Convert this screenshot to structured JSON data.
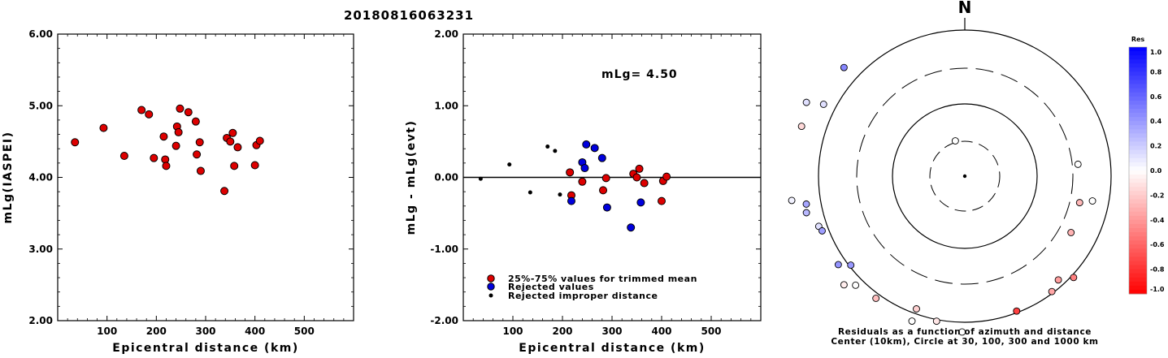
{
  "figure_title": "20180816063231",
  "chart_data": [
    {
      "type": "scatter",
      "ylabel": "mLg(IASPEI)",
      "xlabel": "Epicentral distance (km)",
      "xlim": [
        0,
        600
      ],
      "ylim": [
        2.0,
        6.0
      ],
      "xticks": [
        100,
        200,
        300,
        400,
        500
      ],
      "yticks": [
        2.0,
        3.0,
        4.0,
        5.0,
        6.0
      ],
      "ytick_labels": [
        "2.00",
        "3.00",
        "4.00",
        "5.00",
        "6.00"
      ],
      "marker_color": "#dd0000",
      "points": [
        [
          35,
          4.49
        ],
        [
          93,
          4.69
        ],
        [
          135,
          4.3
        ],
        [
          170,
          4.94
        ],
        [
          185,
          4.88
        ],
        [
          195,
          4.27
        ],
        [
          215,
          4.57
        ],
        [
          218,
          4.25
        ],
        [
          220,
          4.16
        ],
        [
          240,
          4.44
        ],
        [
          242,
          4.71
        ],
        [
          245,
          4.63
        ],
        [
          248,
          4.96
        ],
        [
          265,
          4.91
        ],
        [
          280,
          4.78
        ],
        [
          282,
          4.32
        ],
        [
          288,
          4.49
        ],
        [
          290,
          4.09
        ],
        [
          338,
          3.81
        ],
        [
          343,
          4.55
        ],
        [
          350,
          4.5
        ],
        [
          355,
          4.62
        ],
        [
          358,
          4.16
        ],
        [
          365,
          4.42
        ],
        [
          400,
          4.17
        ],
        [
          403,
          4.45
        ],
        [
          410,
          4.51
        ]
      ]
    },
    {
      "type": "scatter",
      "ylabel": "mLg - mLg(evt)",
      "xlabel": "Epicentral distance (km)",
      "xlim": [
        0,
        600
      ],
      "ylim": [
        -2.0,
        2.0
      ],
      "xticks": [
        100,
        200,
        300,
        400,
        500
      ],
      "yticks": [
        -2.0,
        -1.0,
        0.0,
        1.0,
        2.0
      ],
      "ytick_labels": [
        "-2.00",
        "-1.00",
        "0.00",
        "1.00",
        "2.00"
      ],
      "annotation": "mLg= 4.50",
      "reference_line": 0.0,
      "series": [
        {
          "name": "25%-75% values for trimmed mean",
          "color": "#dd0000",
          "marker": "circle",
          "points": [
            [
              215,
              0.07
            ],
            [
              218,
              -0.25
            ],
            [
              240,
              -0.06
            ],
            [
              288,
              -0.01
            ],
            [
              282,
              -0.18
            ],
            [
              343,
              0.05
            ],
            [
              350,
              0.0
            ],
            [
              355,
              0.12
            ],
            [
              365,
              -0.08
            ],
            [
              400,
              -0.33
            ],
            [
              403,
              -0.05
            ],
            [
              410,
              0.01
            ]
          ]
        },
        {
          "name": "Rejected values",
          "color": "#0000dd",
          "marker": "circle",
          "points": [
            [
              218,
              -0.33
            ],
            [
              240,
              0.21
            ],
            [
              245,
              0.13
            ],
            [
              248,
              0.46
            ],
            [
              265,
              0.41
            ],
            [
              280,
              0.27
            ],
            [
              290,
              -0.42
            ],
            [
              338,
              -0.7
            ],
            [
              358,
              -0.35
            ]
          ]
        },
        {
          "name": "Rejected improper distance",
          "color": "#000000",
          "marker": "dot",
          "points": [
            [
              35,
              -0.02
            ],
            [
              93,
              0.18
            ],
            [
              135,
              -0.21
            ],
            [
              170,
              0.43
            ],
            [
              185,
              0.37
            ],
            [
              195,
              -0.24
            ]
          ]
        }
      ]
    },
    {
      "type": "polar",
      "north_label": "N",
      "caption_line1": "Residuals as a function of azimuth and distance",
      "caption_line2": "Center (10km), Circle at 30, 100, 300 and 1000 km",
      "colorbar_title": "Res",
      "colorbar_ticks": [
        "1.0",
        "0.8",
        "0.6",
        "0.4",
        "0.2",
        "0.0",
        "-0.2",
        "-0.4",
        "-0.6",
        "-0.8",
        "-1.0"
      ],
      "colorbar_ticks_values": [
        1.0,
        0.8,
        0.6,
        0.4,
        0.2,
        0.0,
        -0.2,
        -0.4,
        -0.6,
        -0.8,
        -1.0
      ],
      "points_azimuth_distance_residual": [
        [
          312,
          200,
          0.47
        ],
        [
          297,
          195,
          0.12
        ],
        [
          295,
          215,
          0.12
        ],
        [
          287,
          210,
          -0.15
        ],
        [
          260,
          198,
          0.35
        ],
        [
          262,
          215,
          0.05
        ],
        [
          257,
          200,
          0.28
        ],
        [
          251,
          190,
          0.12
        ],
        [
          249,
          188,
          0.38
        ],
        [
          235,
          190,
          0.42
        ],
        [
          232,
          178,
          0.4
        ],
        [
          228,
          200,
          -0.07
        ],
        [
          225,
          190,
          0.0
        ],
        [
          216,
          186,
          -0.25
        ],
        [
          200,
          174,
          -0.18
        ],
        [
          200,
          190,
          0.0
        ],
        [
          191,
          182,
          -0.1
        ],
        [
          181,
          192,
          0.0
        ],
        [
          159,
          178,
          -0.75
        ],
        [
          143,
          178,
          -0.35
        ],
        [
          138,
          172,
          -0.38
        ],
        [
          133,
          183,
          -0.5
        ],
        [
          118,
          148,
          -0.3
        ],
        [
          103,
          145,
          -0.28
        ],
        [
          101,
          160,
          0.0
        ],
        [
          84,
          140,
          0.0
        ],
        [
          345,
          45,
          0.0
        ]
      ]
    }
  ]
}
